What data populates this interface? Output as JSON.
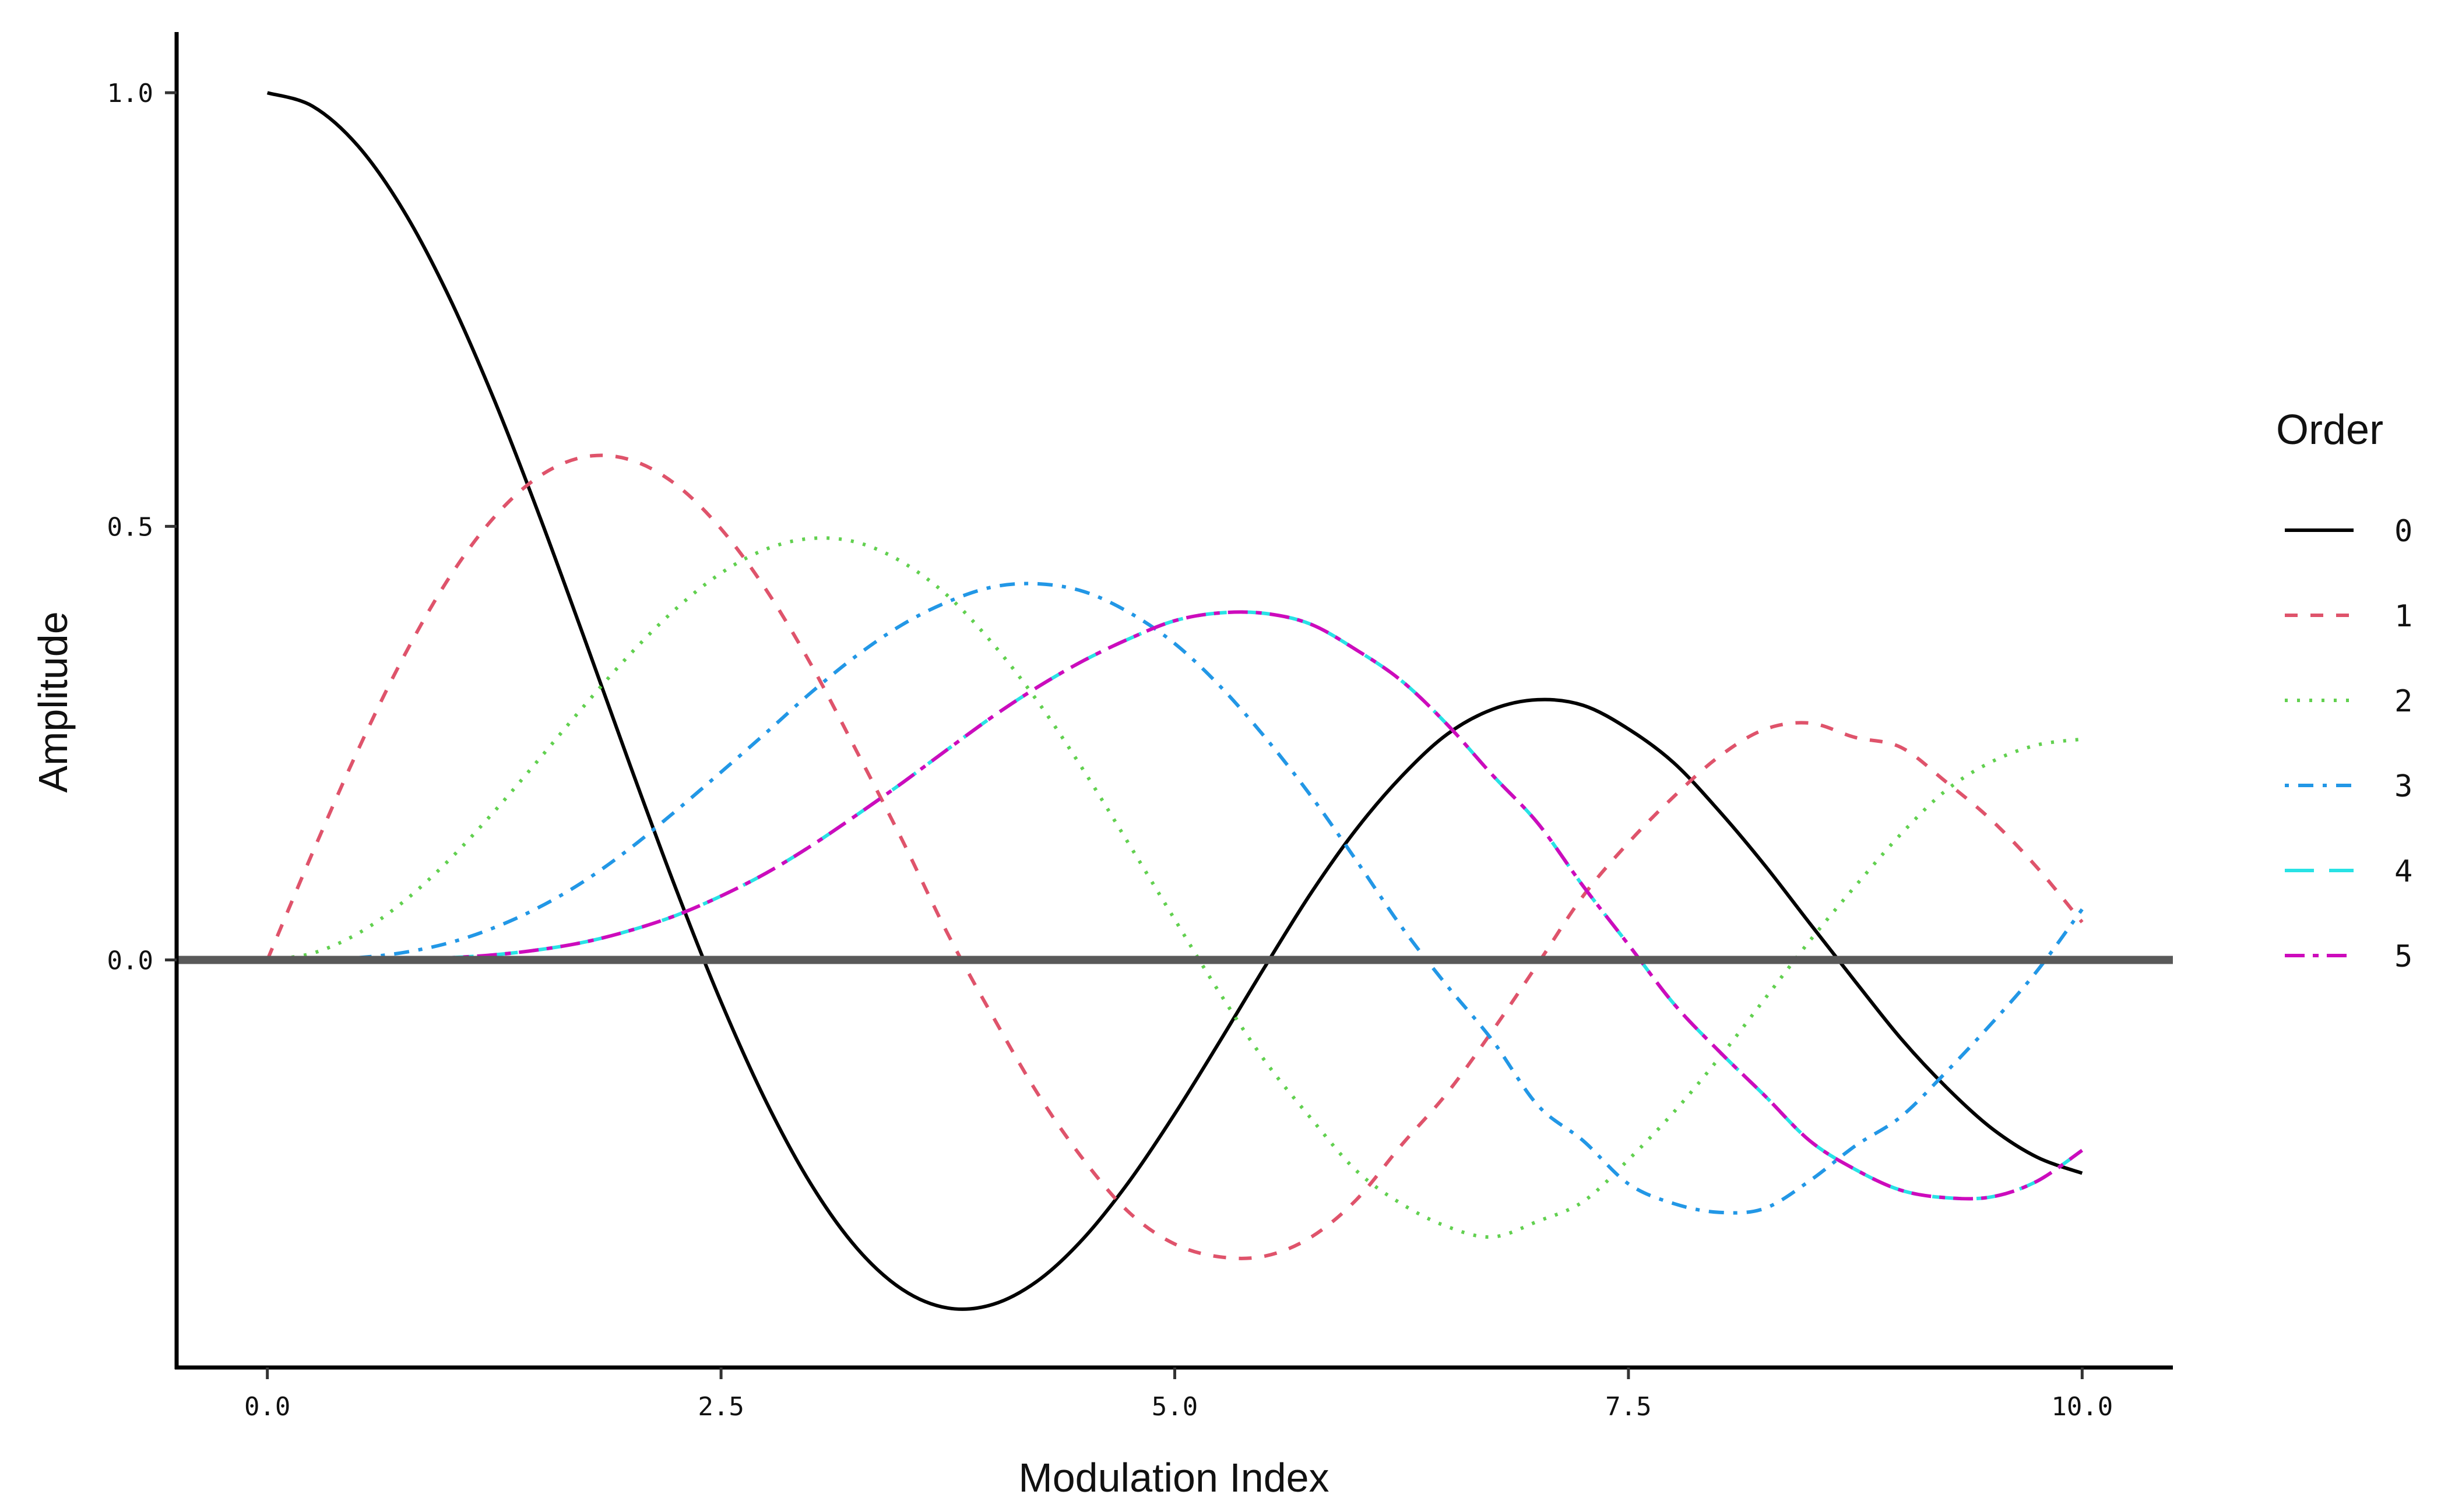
{
  "chart_data": {
    "type": "line",
    "title": "",
    "xlabel": "Modulation Index",
    "ylabel": "Amplitude",
    "xlim": [
      -0.5,
      10.5
    ],
    "ylim": [
      -0.47,
      1.07
    ],
    "xticks": [
      0,
      2.5,
      5,
      7.5,
      10
    ],
    "xtick_labels": [
      "0.0",
      "2.5",
      "5.0",
      "7.5",
      "10.0"
    ],
    "yticks": [
      0,
      0.5,
      1
    ],
    "ytick_labels": [
      "0.0",
      "0.5",
      "1.0"
    ],
    "grid": false,
    "reference_line": {
      "y": 0,
      "color": "#595959"
    },
    "legend": {
      "title": "Order",
      "placement": "right"
    },
    "x": [
      0,
      0.25,
      0.5,
      0.75,
      1,
      1.25,
      1.5,
      1.75,
      2,
      2.25,
      2.5,
      2.75,
      3,
      3.25,
      3.5,
      3.75,
      4,
      4.25,
      4.5,
      4.75,
      5,
      5.25,
      5.5,
      5.75,
      6,
      6.25,
      6.5,
      6.75,
      7,
      7.25,
      7.5,
      7.75,
      8,
      8.25,
      8.5,
      8.75,
      9,
      9.25,
      9.5,
      9.75,
      10
    ],
    "series": [
      {
        "name": "0",
        "color": "#000000",
        "dash": "solid",
        "values": [
          1.0,
          0.9844,
          0.9385,
          0.8642,
          0.7652,
          0.6459,
          0.5118,
          0.369,
          0.2239,
          0.0827,
          -0.0484,
          -0.1641,
          -0.2601,
          -0.3328,
          -0.3801,
          -0.4014,
          -0.3971,
          -0.3692,
          -0.3205,
          -0.2551,
          -0.1776,
          -0.0933,
          -0.0068,
          0.0768,
          0.1506,
          0.2117,
          0.2601,
          0.2889,
          0.3001,
          0.2936,
          0.2663,
          0.2272,
          0.1717,
          0.1095,
          0.0419,
          -0.0249,
          -0.0903,
          -0.1465,
          -0.1939,
          -0.2273,
          -0.2459
        ]
      },
      {
        "name": "1",
        "color": "#DF536B",
        "dash": "dashed",
        "values": [
          0.0,
          0.124,
          0.2423,
          0.3492,
          0.4401,
          0.5106,
          0.5579,
          0.5802,
          0.5767,
          0.5484,
          0.4971,
          0.4264,
          0.3391,
          0.2395,
          0.1374,
          0.0297,
          -0.066,
          -0.1559,
          -0.2311,
          -0.2915,
          -0.3276,
          -0.3425,
          -0.3414,
          -0.3198,
          -0.2767,
          -0.2133,
          -0.1538,
          -0.0819,
          -0.0047,
          0.0737,
          0.1352,
          0.1884,
          0.2346,
          0.2658,
          0.2731,
          0.2565,
          0.2453,
          0.2053,
          0.1613,
          0.1069,
          0.0435
        ]
      },
      {
        "name": "2",
        "color": "#61D04F",
        "dash": "dotted",
        "values": [
          0.0,
          0.0078,
          0.0306,
          0.0671,
          0.1149,
          0.1711,
          0.2321,
          0.2941,
          0.3528,
          0.4047,
          0.4461,
          0.4739,
          0.4861,
          0.4815,
          0.4586,
          0.4197,
          0.3641,
          0.2965,
          0.2178,
          0.1328,
          0.0466,
          -0.0388,
          -0.1173,
          -0.1825,
          -0.2429,
          -0.2813,
          -0.3074,
          -0.3195,
          -0.3014,
          -0.2787,
          -0.2303,
          -0.1755,
          -0.113,
          -0.0453,
          0.0223,
          0.0851,
          0.1448,
          0.1955,
          0.2284,
          0.2478,
          0.2546
        ]
      },
      {
        "name": "3",
        "color": "#2297E6",
        "dash": "dashdot",
        "values": [
          0.0,
          0.0003,
          0.0026,
          0.0085,
          0.0196,
          0.0372,
          0.061,
          0.0914,
          0.1289,
          0.1717,
          0.2166,
          0.2623,
          0.3091,
          0.3513,
          0.3868,
          0.413,
          0.4302,
          0.4337,
          0.4247,
          0.4005,
          0.3648,
          0.3156,
          0.2561,
          0.1893,
          0.1148,
          0.038,
          -0.0296,
          -0.0926,
          -0.1676,
          -0.2084,
          -0.2582,
          -0.281,
          -0.2911,
          -0.2866,
          -0.2545,
          -0.2144,
          -0.181,
          -0.1294,
          -0.0735,
          -0.0131,
          0.0584
        ]
      },
      {
        "name": "4",
        "color": "#28E2E5",
        "dash": "longdash",
        "values": [
          0.0,
          0.0,
          0.0002,
          0.0008,
          0.0025,
          0.0059,
          0.0118,
          0.0207,
          0.034,
          0.0512,
          0.0737,
          0.1003,
          0.1321,
          0.1675,
          0.2044,
          0.2431,
          0.2811,
          0.3154,
          0.3454,
          0.3705,
          0.3912,
          0.4002,
          0.3995,
          0.3871,
          0.3576,
          0.3218,
          0.2718,
          0.2133,
          0.1578,
          0.0852,
          0.0177,
          -0.0506,
          -0.1054,
          -0.1563,
          -0.2087,
          -0.2416,
          -0.2655,
          -0.2742,
          -0.2733,
          -0.2553,
          -0.2196
        ]
      },
      {
        "name": "5",
        "color": "#CD0BBC",
        "dash": "twodash",
        "values": [
          0.0,
          0.0,
          0.0002,
          0.0008,
          0.0025,
          0.0059,
          0.0118,
          0.0207,
          0.034,
          0.0512,
          0.0737,
          0.1003,
          0.1321,
          0.1675,
          0.2044,
          0.2431,
          0.2811,
          0.3154,
          0.3454,
          0.3705,
          0.3912,
          0.4002,
          0.3995,
          0.3871,
          0.3576,
          0.3218,
          0.2718,
          0.2133,
          0.1578,
          0.0852,
          0.0177,
          -0.0506,
          -0.1054,
          -0.1563,
          -0.2087,
          -0.2416,
          -0.2655,
          -0.2742,
          -0.2733,
          -0.2553,
          -0.2196
        ]
      }
    ]
  }
}
